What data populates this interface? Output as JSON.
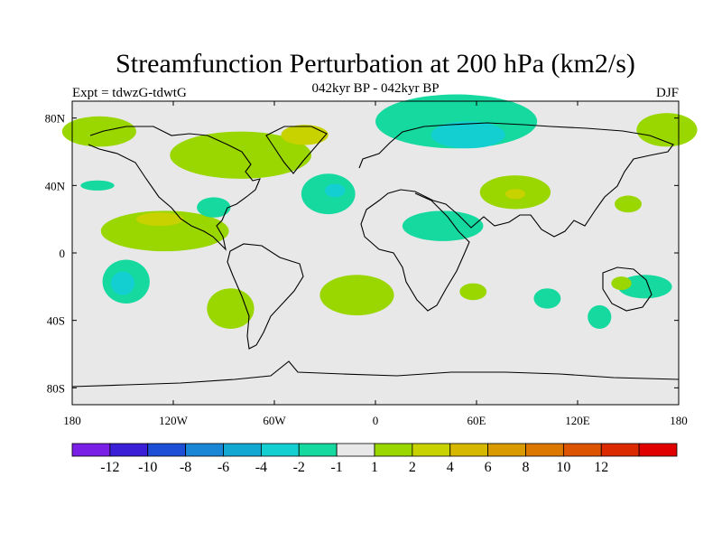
{
  "chart_data": {
    "type": "heatmap",
    "title": "Streamfunction Perturbation at 200 hPa (km2/s)",
    "subtitle": "042kyr BP - 042kyr BP",
    "left_label": "Expt = tdwzG-tdwtG",
    "right_label": "DJF",
    "projection": "cylindrical equidistant world map",
    "x_range": [
      -180,
      180
    ],
    "y_range": [
      -90,
      90
    ],
    "x_ticks": [
      {
        "value": -180,
        "label": "180"
      },
      {
        "value": -120,
        "label": "120W"
      },
      {
        "value": -60,
        "label": "60W"
      },
      {
        "value": 0,
        "label": "0"
      },
      {
        "value": 60,
        "label": "60E"
      },
      {
        "value": 120,
        "label": "120E"
      },
      {
        "value": 180,
        "label": "180"
      }
    ],
    "y_ticks": [
      {
        "value": 80,
        "label": "80N"
      },
      {
        "value": 40,
        "label": "40N"
      },
      {
        "value": 0,
        "label": "0"
      },
      {
        "value": -40,
        "label": "40S"
      },
      {
        "value": -80,
        "label": "80S"
      }
    ],
    "colorbar": {
      "colors": [
        "#7a1fe6",
        "#3b1fd6",
        "#1d4fd6",
        "#1a86d6",
        "#13a8d2",
        "#14cfd2",
        "#16d9a0",
        "#e8e8e8",
        "#9ad600",
        "#c8d200",
        "#d6b800",
        "#d99a00",
        "#dc7800",
        "#dc5400",
        "#dc2a00",
        "#e00000"
      ],
      "labels": [
        "-12",
        "-10",
        "-8",
        "-6",
        "-4",
        "-2",
        "-1",
        "1",
        "2",
        "4",
        "6",
        "8",
        "10",
        "12"
      ]
    },
    "regions": [
      {
        "lon": -164,
        "lat": 72,
        "rx": 22,
        "ry": 9,
        "level": 2
      },
      {
        "lon": -80,
        "lat": 58,
        "rx": 42,
        "ry": 14,
        "level": 2
      },
      {
        "lon": -42,
        "lat": 70,
        "rx": 14,
        "ry": 6,
        "level": 4
      },
      {
        "lon": -165,
        "lat": 40,
        "rx": 10,
        "ry": 3,
        "level": -1
      },
      {
        "lon": -125,
        "lat": 13,
        "rx": 38,
        "ry": 12,
        "level": 2
      },
      {
        "lon": -128,
        "lat": 20,
        "rx": 14,
        "ry": 4,
        "level": 4
      },
      {
        "lon": -96,
        "lat": 27,
        "rx": 10,
        "ry": 6,
        "level": -1
      },
      {
        "lon": -28,
        "lat": 35,
        "rx": 16,
        "ry": 12,
        "level": -1
      },
      {
        "lon": -24,
        "lat": 37,
        "rx": 6,
        "ry": 4,
        "level": -2
      },
      {
        "lon": 48,
        "lat": 78,
        "rx": 48,
        "ry": 16,
        "level": -1
      },
      {
        "lon": 55,
        "lat": 70,
        "rx": 22,
        "ry": 8,
        "level": -2
      },
      {
        "lon": 83,
        "lat": 36,
        "rx": 21,
        "ry": 10,
        "level": 2
      },
      {
        "lon": 83,
        "lat": 35,
        "rx": 6,
        "ry": 3,
        "level": 4
      },
      {
        "lon": 173,
        "lat": 73,
        "rx": 18,
        "ry": 10,
        "level": 2
      },
      {
        "lon": 40,
        "lat": 16,
        "rx": 24,
        "ry": 9,
        "level": -1
      },
      {
        "lon": 150,
        "lat": 29,
        "rx": 8,
        "ry": 5,
        "level": 2
      },
      {
        "lon": -148,
        "lat": -17,
        "rx": 14,
        "ry": 13,
        "level": -1
      },
      {
        "lon": -150,
        "lat": -18,
        "rx": 7,
        "ry": 7,
        "level": -2
      },
      {
        "lon": -86,
        "lat": -33,
        "rx": 14,
        "ry": 12,
        "level": 2
      },
      {
        "lon": -11,
        "lat": -25,
        "rx": 22,
        "ry": 12,
        "level": 2
      },
      {
        "lon": 58,
        "lat": -23,
        "rx": 8,
        "ry": 5,
        "level": 2
      },
      {
        "lon": 102,
        "lat": -27,
        "rx": 8,
        "ry": 6,
        "level": -1
      },
      {
        "lon": 160,
        "lat": -20,
        "rx": 16,
        "ry": 7,
        "level": -1
      },
      {
        "lon": 146,
        "lat": -18,
        "rx": 6,
        "ry": 4,
        "level": 2
      },
      {
        "lon": 133,
        "lat": -38,
        "rx": 7,
        "ry": 7,
        "level": -1
      }
    ]
  }
}
